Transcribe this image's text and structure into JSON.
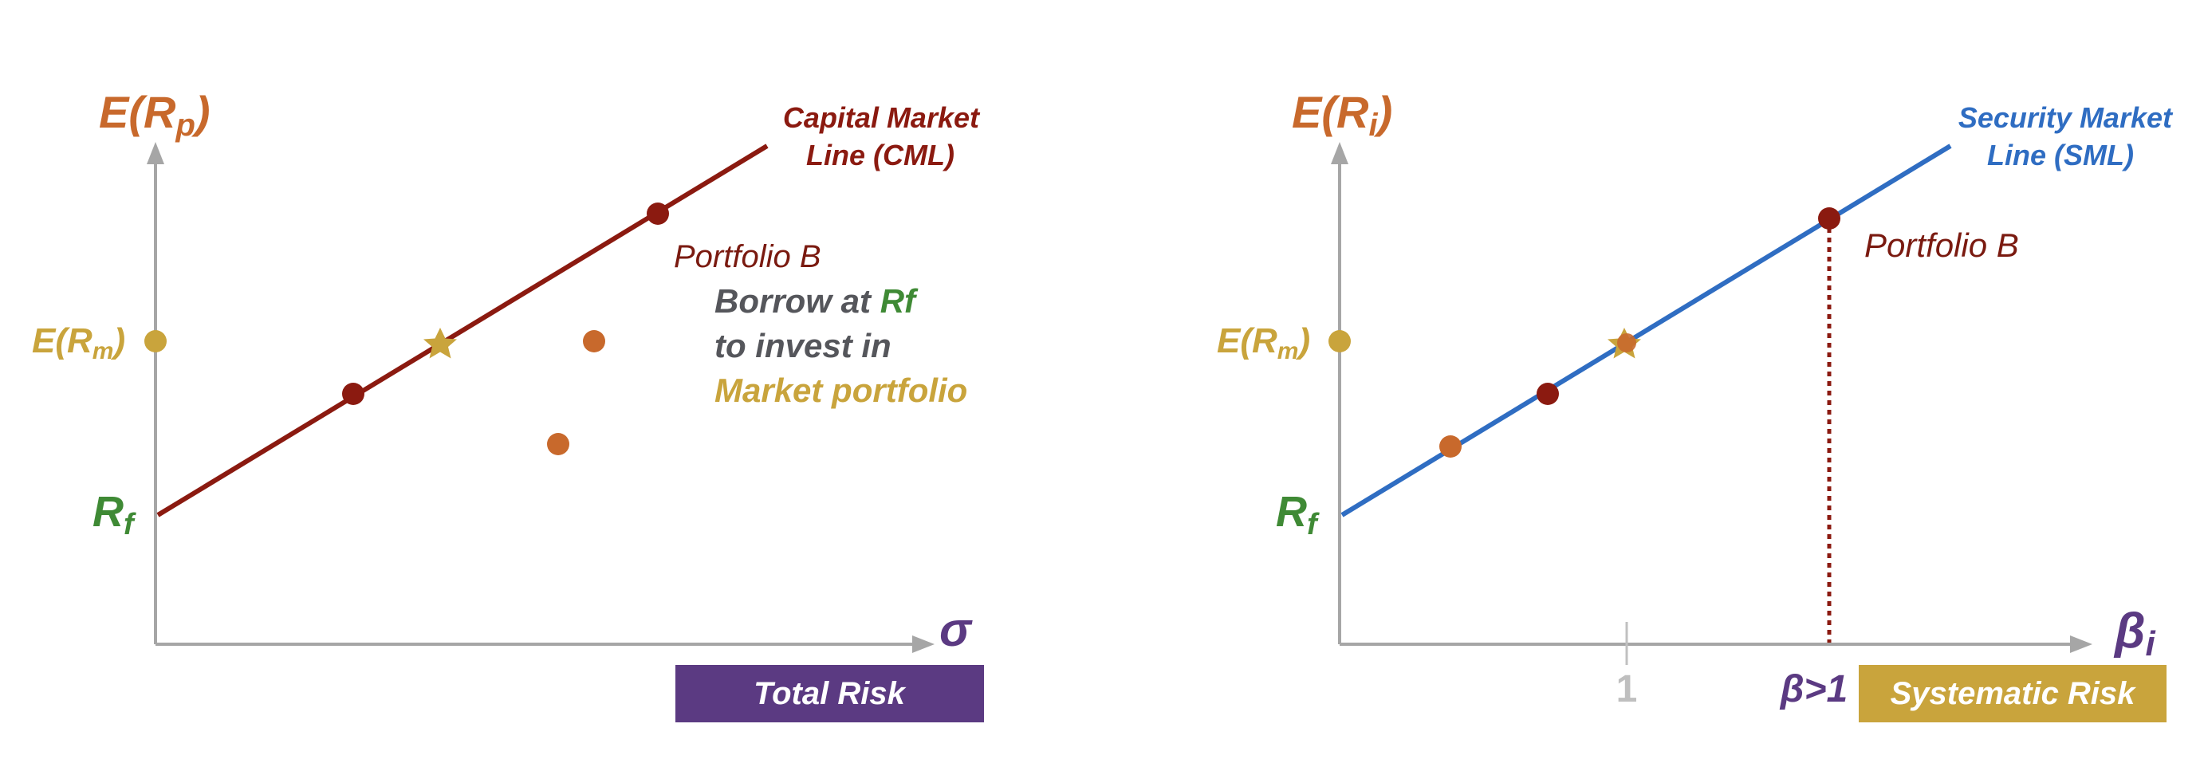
{
  "colors": {
    "axis": "#a6a6a6",
    "cml": "#8b1a10",
    "sml": "#2f6dc2",
    "orange": "#c8692c",
    "gold": "#c9a43c",
    "green": "#3f8a35",
    "gray_text": "#55565b",
    "purple": "#5b3a82",
    "dark_red_dot": "#8b1a10",
    "label_red": "#7a1a10",
    "tick_gray": "#c0c0c0"
  },
  "left": {
    "y_axis_label": {
      "main": "E(R",
      "sub": "p",
      "close": ")"
    },
    "x_axis_label": "σ",
    "erm_label": {
      "main": "E(R",
      "sub": "m",
      "close": ")"
    },
    "rf_label": {
      "main": "R",
      "sub": "f"
    },
    "line_label_1": "Capital Market",
    "line_label_2": "Line (CML)",
    "portfolio_label": "Portfolio B",
    "note_line1_a": "Borrow at ",
    "note_line1_b": "Rf",
    "note_line2": "to invest in",
    "note_line3": "Market portfolio",
    "badge": "Total Risk"
  },
  "right": {
    "y_axis_label": {
      "main": "E(R",
      "sub": "i",
      "close": ")"
    },
    "x_axis_label": "β",
    "x_axis_sub": "i",
    "erm_label": {
      "main": "E(R",
      "sub": "m",
      "close": ")"
    },
    "rf_label": {
      "main": "R",
      "sub": "f"
    },
    "line_label_1": "Security Market",
    "line_label_2": "Line (SML)",
    "portfolio_label": "Portfolio B",
    "tick_one": "1",
    "beta_label": "β>1",
    "badge": "Systematic Risk"
  },
  "icons": {
    "market_portfolio": "star-icon"
  }
}
